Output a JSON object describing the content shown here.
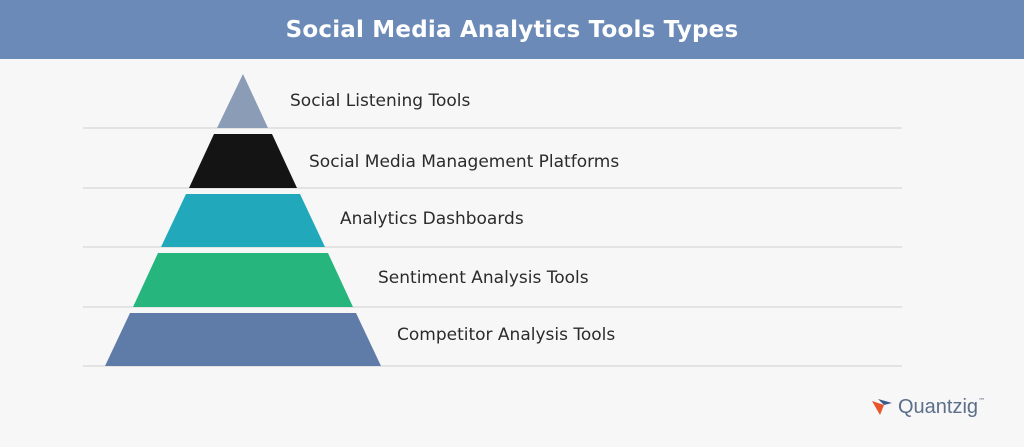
{
  "header": {
    "title": "Social Media Analytics Tools Types"
  },
  "tiers": [
    {
      "label": "Social Listening Tools",
      "color": "#8b9db6"
    },
    {
      "label": "Social Media Management Platforms",
      "color": "#141414"
    },
    {
      "label": "Analytics Dashboards",
      "color": "#21a9bb"
    },
    {
      "label": "Sentiment Analysis Tools",
      "color": "#26b57c"
    },
    {
      "label": "Competitor Analysis Tools",
      "color": "#5f7ba8"
    }
  ],
  "logo": {
    "text": "Quantzig",
    "trademark": "™",
    "colors": [
      "#e8552b",
      "#3c5a8c"
    ]
  }
}
